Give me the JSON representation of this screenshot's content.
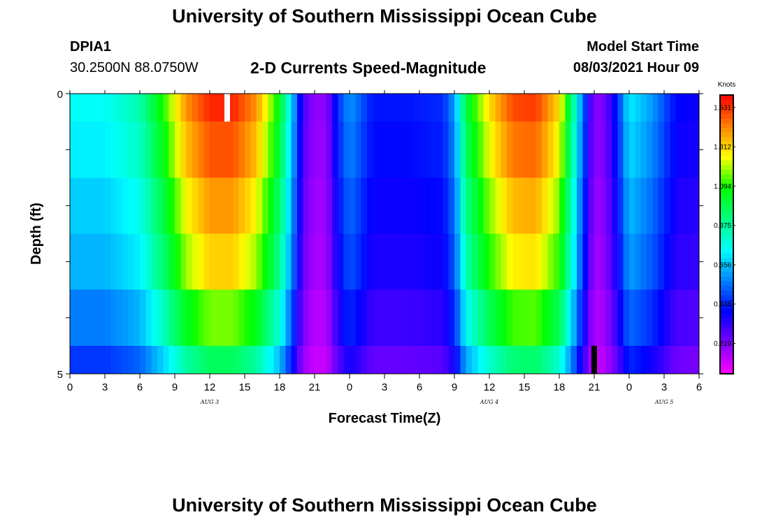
{
  "header": {
    "title": "University of Southern Mississippi Ocean Cube",
    "station": "DPIA1",
    "coords": "30.2500N  88.0750W",
    "subtitle": "2-D Currents Speed-Magnitude",
    "start_label": "Model Start Time",
    "start_value": "08/03/2021 Hour 09"
  },
  "footer": {
    "title": "University of Southern Mississippi Ocean Cube"
  },
  "chart_data": {
    "type": "heatmap",
    "title": "2-D Currents Speed-Magnitude",
    "xlabel": "Forecast Time(Z)",
    "ylabel": "Depth (ft)",
    "x_unit": "hours since AUG 3 00Z",
    "xlim": [
      0,
      54
    ],
    "ylim": [
      0,
      5
    ],
    "x_ticks": [
      0,
      3,
      6,
      9,
      12,
      15,
      18,
      21,
      24,
      27,
      30,
      33,
      36,
      39,
      42,
      45,
      48,
      51,
      54
    ],
    "x_tick_labels": [
      "0",
      "3",
      "6",
      "9",
      "12",
      "15",
      "18",
      "21",
      "0",
      "3",
      "6",
      "9",
      "12",
      "15",
      "18",
      "21",
      "0",
      "3",
      "6"
    ],
    "y_ticks": [
      0,
      5
    ],
    "y_tick_labels": [
      "0",
      "5"
    ],
    "date_labels": [
      {
        "x": 12,
        "label": "AUG 3"
      },
      {
        "x": 36,
        "label": "AUG 4"
      },
      {
        "x": 51,
        "label": "AUG 5"
      }
    ],
    "layers": [
      {
        "depth_top": 0,
        "depth_bottom": 0.5,
        "speed_scale": 1.0
      },
      {
        "depth_top": 0.5,
        "depth_bottom": 1.5,
        "speed_scale": 0.96
      },
      {
        "depth_top": 1.5,
        "depth_bottom": 2.5,
        "speed_scale": 0.9
      },
      {
        "depth_top": 2.5,
        "depth_bottom": 3.5,
        "speed_scale": 0.85
      },
      {
        "depth_top": 3.5,
        "depth_bottom": 4.5,
        "speed_scale": 0.75
      },
      {
        "depth_top": 4.5,
        "depth_bottom": 5,
        "speed_scale": 0.62
      }
    ],
    "surface_speed_profile": {
      "hours": [
        0,
        3,
        6,
        8,
        10,
        12,
        14,
        16,
        18,
        19,
        20,
        21,
        22,
        23,
        24,
        26,
        29,
        32,
        33,
        34,
        36,
        38,
        40,
        42,
        43,
        44,
        45,
        46,
        47,
        48,
        50,
        52,
        54
      ],
      "knots": [
        0.75,
        0.75,
        0.85,
        1.1,
        1.4,
        1.55,
        1.55,
        1.4,
        1.05,
        0.7,
        0.3,
        0.2,
        0.2,
        0.45,
        0.6,
        0.42,
        0.42,
        0.45,
        0.6,
        1.0,
        1.3,
        1.5,
        1.52,
        1.3,
        0.95,
        0.55,
        0.2,
        0.25,
        0.45,
        0.72,
        0.6,
        0.4,
        0.38
      ]
    },
    "markers": [
      {
        "x": 13.5,
        "depth_top": 0,
        "depth_bottom": 0.5,
        "color": "#ffffff"
      },
      {
        "x": 45,
        "depth_top": 4.5,
        "depth_bottom": 5,
        "color": "#000000"
      }
    ],
    "colorbar": {
      "unit": "Knots",
      "min": 0.05,
      "max": 1.6,
      "tick_values": [
        1.531,
        1.312,
        1.094,
        0.875,
        0.656,
        0.438,
        0.219
      ],
      "tick_labels": [
        "1.531",
        "1.312",
        "1.094",
        "0.875",
        "0.656",
        "0.438",
        "0.219"
      ],
      "colors": [
        "#ff00ff",
        "#8000ff",
        "#0000ff",
        "#0080ff",
        "#00ffff",
        "#00ff80",
        "#00ff00",
        "#ffff00",
        "#ff8000",
        "#ff0000"
      ]
    }
  }
}
